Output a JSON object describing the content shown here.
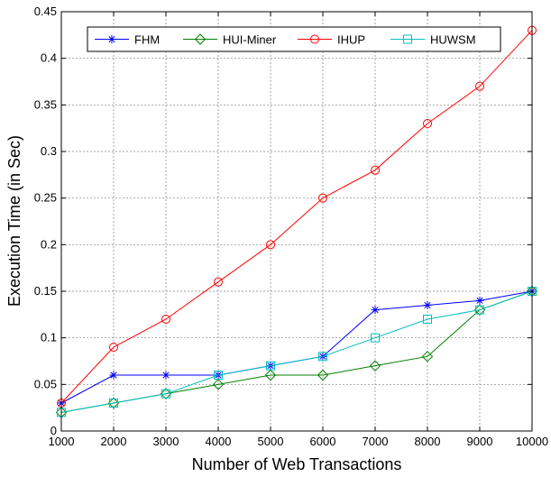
{
  "chart_data": {
    "type": "line",
    "title": "",
    "xlabel": "Number of Web Transactions",
    "ylabel": "Execution Time (in Sec)",
    "x": [
      1000,
      2000,
      3000,
      4000,
      5000,
      6000,
      7000,
      8000,
      9000,
      10000
    ],
    "xlim": [
      1000,
      10000
    ],
    "ylim": [
      0,
      0.45
    ],
    "xticks": [
      "1000",
      "2000",
      "3000",
      "4000",
      "5000",
      "6000",
      "7000",
      "8000",
      "9000",
      "10000"
    ],
    "yticks": [
      "0",
      "0.05",
      "0.1",
      "0.15",
      "0.2",
      "0.25",
      "0.3",
      "0.35",
      "0.4",
      "0.45"
    ],
    "grid": true,
    "legend_position": "top",
    "series": [
      {
        "name": "FHM",
        "color": "#0000ff",
        "marker": "asterisk",
        "values": [
          0.03,
          0.06,
          0.06,
          0.06,
          0.07,
          0.08,
          0.13,
          0.135,
          0.14,
          0.15
        ]
      },
      {
        "name": "HUI-Miner",
        "color": "#008000",
        "marker": "diamond",
        "values": [
          0.02,
          0.03,
          0.04,
          0.05,
          0.06,
          0.06,
          0.07,
          0.08,
          0.13,
          0.15
        ]
      },
      {
        "name": "IHUP",
        "color": "#ff0000",
        "marker": "circle",
        "values": [
          0.03,
          0.09,
          0.12,
          0.16,
          0.2,
          0.25,
          0.28,
          0.33,
          0.37,
          0.43
        ]
      },
      {
        "name": "HUWSM",
        "color": "#00bfbf",
        "marker": "square",
        "values": [
          0.02,
          0.03,
          0.04,
          0.06,
          0.07,
          0.08,
          0.1,
          0.12,
          0.13,
          0.15
        ]
      }
    ]
  }
}
